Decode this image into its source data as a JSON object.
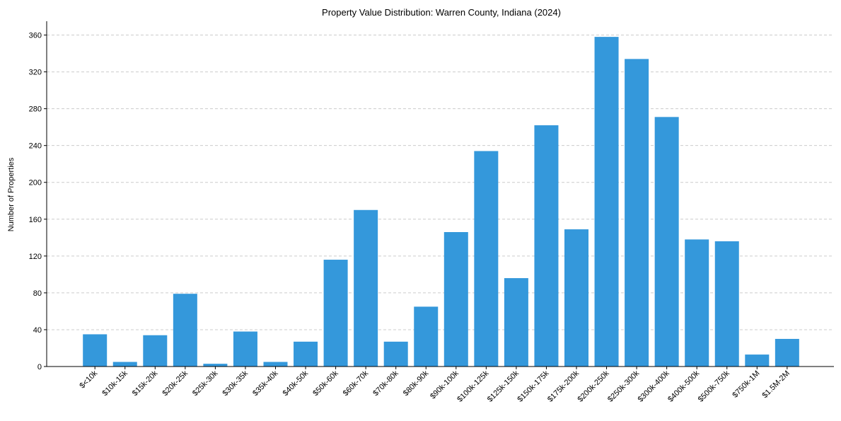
{
  "chart_data": {
    "type": "bar",
    "title": "Property Value Distribution: Warren County, Indiana (2024)",
    "xlabel": "",
    "ylabel": "Number of Properties",
    "categories": [
      "$<10k",
      "$10k-15k",
      "$15k-20k",
      "$20k-25k",
      "$25k-30k",
      "$30k-35k",
      "$35k-40k",
      "$40k-50k",
      "$50k-60k",
      "$60k-70k",
      "$70k-80k",
      "$80k-90k",
      "$90k-100k",
      "$100k-125k",
      "$125k-150k",
      "$150k-175k",
      "$175k-200k",
      "$200k-250k",
      "$250k-300k",
      "$300k-400k",
      "$400k-500k",
      "$500k-750k",
      "$750k-1M",
      "$1.5M-2M"
    ],
    "values": [
      35,
      5,
      34,
      79,
      3,
      38,
      5,
      27,
      116,
      170,
      27,
      65,
      146,
      234,
      96,
      262,
      149,
      358,
      334,
      271,
      138,
      136,
      13,
      30
    ],
    "ylim": [
      0,
      375
    ],
    "yticks": [
      0,
      40,
      80,
      120,
      160,
      200,
      240,
      280,
      320,
      360
    ],
    "grid": "horizontal-dashed",
    "bar_color": "#3498db",
    "grid_color": "#cccccc",
    "axis_color": "#000000"
  }
}
